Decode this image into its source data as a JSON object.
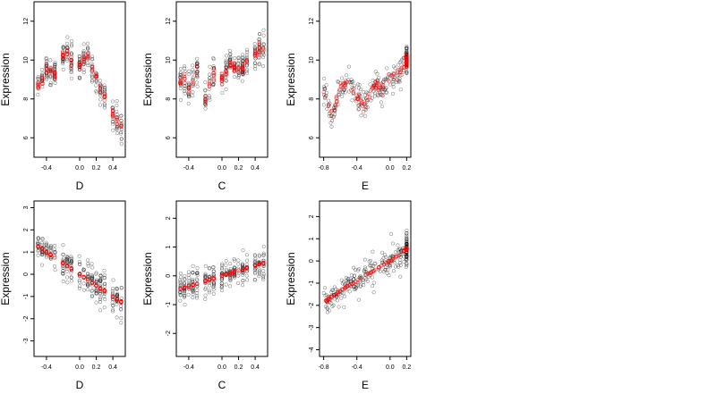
{
  "chart_data": [
    {
      "type": "scatter",
      "row": 1,
      "col": 1,
      "xlabel": "D",
      "ylabel": "Expression",
      "xlim": [
        -0.55,
        0.55
      ],
      "ylim": [
        5,
        13
      ],
      "xticks": [
        {
          "v": -0.4,
          "t": "-0.4"
        },
        {
          "v": 0.0,
          "t": "0.0"
        },
        {
          "v": 0.2,
          "t": "0.2"
        },
        {
          "v": 0.4,
          "t": "0.4"
        }
      ],
      "yticks": [
        {
          "v": 6,
          "t": "6"
        },
        {
          "v": 8,
          "t": "8"
        },
        {
          "v": 10,
          "t": "10"
        },
        {
          "v": 12,
          "t": "12"
        }
      ],
      "points_summary": "observed expression scattered around a peak near D=-0.15",
      "series": [
        {
          "name": "",
          "color": "#000000",
          "kind": "observed"
        },
        {
          "name": "",
          "color": "#ff0000",
          "kind": "fitted",
          "x": [
            -0.5,
            -0.45,
            -0.4,
            -0.3,
            -0.2,
            -0.15,
            -0.1,
            0.0,
            0.05,
            0.1,
            0.15,
            0.2,
            0.25,
            0.3,
            0.35,
            0.4,
            0.5
          ],
          "y": [
            8.7,
            9.0,
            9.5,
            9.3,
            10.3,
            10.5,
            10.0,
            9.8,
            10.1,
            10.2,
            9.6,
            9.1,
            8.5,
            8.2,
            7.5,
            7.2,
            6.6
          ]
        }
      ]
    },
    {
      "type": "scatter",
      "row": 1,
      "col": 2,
      "xlabel": "C",
      "ylabel": "Expression",
      "xlim": [
        -0.55,
        0.55
      ],
      "ylim": [
        5,
        13
      ],
      "xticks": [
        {
          "v": -0.4,
          "t": "-0.4"
        },
        {
          "v": 0.0,
          "t": "0.0"
        },
        {
          "v": 0.2,
          "t": "0.2"
        },
        {
          "v": 0.4,
          "t": "0.4"
        }
      ],
      "yticks": [
        {
          "v": 6,
          "t": "6"
        },
        {
          "v": 8,
          "t": "8"
        },
        {
          "v": 10,
          "t": "10"
        },
        {
          "v": 12,
          "t": "12"
        }
      ],
      "series": [
        {
          "name": "",
          "color": "#000000",
          "kind": "observed"
        },
        {
          "name": "",
          "color": "#ff0000",
          "kind": "fitted",
          "x": [
            -0.45,
            -0.4,
            -0.3,
            -0.2,
            -0.1,
            0.0,
            0.1,
            0.2,
            0.3,
            0.4,
            0.45
          ],
          "y": [
            9.0,
            8.5,
            9.5,
            8.0,
            9.3,
            9.0,
            9.8,
            9.5,
            9.9,
            10.3,
            10.6
          ]
        }
      ]
    },
    {
      "type": "scatter",
      "row": 1,
      "col": 3,
      "xlabel": "E",
      "ylabel": "Expression",
      "xlim": [
        -0.85,
        0.25
      ],
      "ylim": [
        5,
        13
      ],
      "xticks": [
        {
          "v": -0.8,
          "t": "-0.8"
        },
        {
          "v": -0.4,
          "t": "-0.4"
        },
        {
          "v": 0.0,
          "t": "0.0"
        },
        {
          "v": 0.2,
          "t": "0.2"
        }
      ],
      "yticks": [
        {
          "v": 6,
          "t": "6"
        },
        {
          "v": 8,
          "t": "8"
        },
        {
          "v": 10,
          "t": "10"
        },
        {
          "v": 12,
          "t": "12"
        }
      ],
      "series": [
        {
          "name": "",
          "color": "#000000",
          "kind": "observed"
        },
        {
          "name": "",
          "color": "#ff0000",
          "kind": "fitted",
          "x": [
            -0.8,
            -0.7,
            -0.6,
            -0.5,
            -0.4,
            -0.3,
            -0.2,
            -0.1,
            0.0,
            0.1,
            0.2
          ],
          "y": [
            8.5,
            7.0,
            8.6,
            9.0,
            8.0,
            7.6,
            8.8,
            8.5,
            9.0,
            9.3,
            10.0
          ]
        }
      ]
    },
    {
      "type": "scatter",
      "row": 2,
      "col": 1,
      "xlabel": "D",
      "ylabel": "Expression",
      "xlim": [
        -0.55,
        0.55
      ],
      "ylim": [
        -3.7,
        3.3
      ],
      "xticks": [
        {
          "v": -0.4,
          "t": "-0.4"
        },
        {
          "v": 0.0,
          "t": "0.0"
        },
        {
          "v": 0.2,
          "t": "0.2"
        },
        {
          "v": 0.4,
          "t": "0.4"
        }
      ],
      "yticks": [
        {
          "v": -3,
          "t": "-3"
        },
        {
          "v": -2,
          "t": "-2"
        },
        {
          "v": -1,
          "t": "-1"
        },
        {
          "v": 0,
          "t": "0"
        },
        {
          "v": 1,
          "t": "1"
        },
        {
          "v": 2,
          "t": "2"
        },
        {
          "v": 3,
          "t": "3"
        }
      ],
      "series": [
        {
          "name": "",
          "color": "#000000",
          "kind": "observed"
        },
        {
          "name": "",
          "color": "#ff0000",
          "kind": "fitted",
          "x": [
            -0.5,
            -0.4,
            -0.3,
            -0.2,
            -0.1,
            0.0,
            0.1,
            0.2,
            0.3,
            0.4,
            0.5
          ],
          "y": [
            1.25,
            1.0,
            0.75,
            0.5,
            0.25,
            0.0,
            -0.25,
            -0.5,
            -0.75,
            -1.0,
            -1.25
          ]
        }
      ]
    },
    {
      "type": "scatter",
      "row": 2,
      "col": 2,
      "xlabel": "C",
      "ylabel": "Expression",
      "xlim": [
        -0.55,
        0.55
      ],
      "ylim": [
        -2.8,
        2.6
      ],
      "xticks": [
        {
          "v": -0.4,
          "t": "-0.4"
        },
        {
          "v": 0.0,
          "t": "0.0"
        },
        {
          "v": 0.2,
          "t": "0.2"
        },
        {
          "v": 0.4,
          "t": "0.4"
        }
      ],
      "yticks": [
        {
          "v": -2,
          "t": "-2"
        },
        {
          "v": -1,
          "t": "-1"
        },
        {
          "v": 0,
          "t": "0"
        },
        {
          "v": 1,
          "t": "1"
        },
        {
          "v": 2,
          "t": "2"
        }
      ],
      "series": [
        {
          "name": "",
          "color": "#000000",
          "kind": "observed"
        },
        {
          "name": "",
          "color": "#ff0000",
          "kind": "fitted",
          "x": [
            -0.5,
            -0.4,
            -0.3,
            -0.2,
            -0.1,
            0.0,
            0.1,
            0.2,
            0.3,
            0.4,
            0.5
          ],
          "y": [
            -0.45,
            -0.36,
            -0.27,
            -0.18,
            -0.09,
            0.0,
            0.09,
            0.18,
            0.27,
            0.36,
            0.45
          ]
        }
      ]
    },
    {
      "type": "scatter",
      "row": 2,
      "col": 3,
      "xlabel": "E",
      "ylabel": "Expression",
      "xlim": [
        -0.85,
        0.25
      ],
      "ylim": [
        -4.3,
        2.7
      ],
      "xticks": [
        {
          "v": -0.8,
          "t": "-0.8"
        },
        {
          "v": -0.4,
          "t": "-0.4"
        },
        {
          "v": 0.0,
          "t": "0.0"
        },
        {
          "v": 0.2,
          "t": "0.2"
        }
      ],
      "yticks": [
        {
          "v": -4,
          "t": "-4"
        },
        {
          "v": -3,
          "t": "-3"
        },
        {
          "v": -2,
          "t": "-2"
        },
        {
          "v": -1,
          "t": "-1"
        },
        {
          "v": 0,
          "t": "0"
        },
        {
          "v": 1,
          "t": "1"
        },
        {
          "v": 2,
          "t": "2"
        }
      ],
      "series": [
        {
          "name": "",
          "color": "#000000",
          "kind": "observed"
        },
        {
          "name": "",
          "color": "#ff0000",
          "kind": "fitted",
          "x": [
            -0.8,
            -0.7,
            -0.6,
            -0.5,
            -0.4,
            -0.3,
            -0.2,
            -0.1,
            0.0,
            0.1,
            0.2
          ],
          "y": [
            -1.9,
            -1.6,
            -1.35,
            -1.1,
            -0.9,
            -0.65,
            -0.45,
            -0.2,
            0.0,
            0.25,
            0.55
          ]
        }
      ]
    }
  ]
}
